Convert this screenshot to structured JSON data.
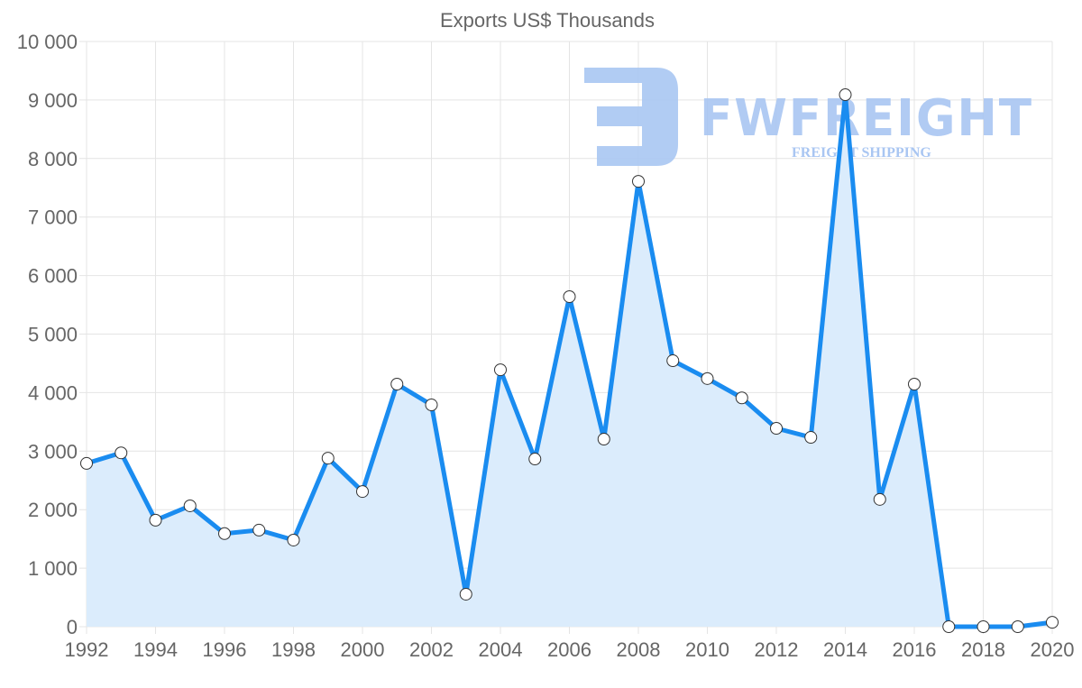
{
  "watermark": {
    "brand": "FWFREIGHT",
    "tagline": "FREIGHT SHIPPING"
  },
  "colors": {
    "line": "#1a8cf0",
    "fill": "#dbecfc",
    "grid": "#e4e4e4",
    "point_fill": "#ffffff",
    "point_stroke": "#333333"
  },
  "chart_data": {
    "type": "line",
    "title": "Exports US$ Thousands",
    "xlabel": "",
    "ylabel": "",
    "x": [
      1992,
      1993,
      1994,
      1995,
      1996,
      1997,
      1998,
      1999,
      2000,
      2001,
      2002,
      2003,
      2004,
      2005,
      2006,
      2007,
      2008,
      2009,
      2010,
      2011,
      2012,
      2013,
      2014,
      2015,
      2016,
      2017,
      2018,
      2019,
      2020
    ],
    "series": [
      {
        "name": "Exports US$ Thousands",
        "values": [
          2790,
          2970,
          1820,
          2065,
          1590,
          1650,
          1480,
          2880,
          2310,
          4145,
          3790,
          555,
          4390,
          2865,
          5640,
          3205,
          7610,
          4545,
          4240,
          3910,
          3390,
          3235,
          9090,
          2175,
          4145,
          0,
          0,
          0,
          75
        ],
        "filled": true
      }
    ],
    "xlim": [
      1992,
      2020
    ],
    "ylim": [
      0,
      10000
    ],
    "x_ticks": [
      "1992",
      "1994",
      "1996",
      "1998",
      "2000",
      "2002",
      "2004",
      "2006",
      "2008",
      "2010",
      "2012",
      "2014",
      "2016",
      "2018",
      "2020"
    ],
    "y_ticks": [
      "0",
      "1 000",
      "2 000",
      "3 000",
      "4 000",
      "5 000",
      "6 000",
      "7 000",
      "8 000",
      "9 000",
      "10 000"
    ],
    "grid": true,
    "legend": "none"
  }
}
